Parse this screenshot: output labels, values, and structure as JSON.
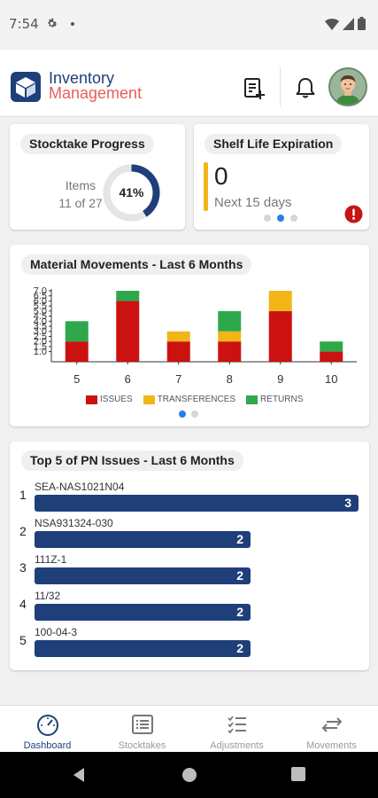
{
  "status": {
    "time": "7:54"
  },
  "header": {
    "logo_line1": "Inventory",
    "logo_line2": "Management",
    "brand_color": "#1f3f7a",
    "accent_color": "#e85d5d"
  },
  "stocktake": {
    "title": "Stocktake Progress",
    "items_label": "Items",
    "items_count": "11 of 27",
    "percent_label": "41%",
    "percent": 0.41
  },
  "shelf_life": {
    "title": "Shelf Life Expiration",
    "count": "0",
    "subtitle": "Next 15 days",
    "pager_active": 1,
    "pager_total": 3
  },
  "movements": {
    "title": "Material Movements - Last 6 Months",
    "pager_active": 0,
    "pager_total": 2
  },
  "chart_data": {
    "type": "bar",
    "stacked": true,
    "categories": [
      "5",
      "6",
      "7",
      "8",
      "9",
      "10"
    ],
    "series": [
      {
        "name": "ISSUES",
        "color": "#cc1111",
        "values": [
          2,
          6,
          2,
          2,
          5,
          1
        ]
      },
      {
        "name": "TRANSFERENCES",
        "color": "#f2b618",
        "values": [
          0,
          0,
          1,
          1,
          2,
          0
        ]
      },
      {
        "name": "RETURNS",
        "color": "#2ea84a",
        "values": [
          2,
          1,
          0,
          2,
          0,
          1
        ]
      }
    ],
    "yticks": [
      "1.0",
      "1.5",
      "2.0",
      "2.5",
      "3.0",
      "3.5",
      "4.0",
      "4.5",
      "5.0",
      "5.5",
      "6.0",
      "6.5",
      "7.0"
    ],
    "ylim": [
      0,
      7
    ],
    "legend_position": "bottom"
  },
  "top_issues": {
    "title": "Top 5 of PN Issues - Last 6 Months",
    "max": 3,
    "items": [
      {
        "rank": "1",
        "pn": "SEA-NAS1021N04",
        "value": 3
      },
      {
        "rank": "2",
        "pn": "NSA931324-030",
        "value": 2
      },
      {
        "rank": "3",
        "pn": "111Z-1",
        "value": 2
      },
      {
        "rank": "4",
        "pn": "11/32",
        "value": 2
      },
      {
        "rank": "5",
        "pn": "100-04-3",
        "value": 2
      }
    ]
  },
  "nav": {
    "items": [
      {
        "label": "Dashboard",
        "icon": "gauge-icon",
        "active": true
      },
      {
        "label": "Stocktakes",
        "icon": "list-icon",
        "active": false
      },
      {
        "label": "Adjustments",
        "icon": "checklist-icon",
        "active": false
      },
      {
        "label": "Movements",
        "icon": "transfer-arrows-icon",
        "active": false
      }
    ]
  }
}
